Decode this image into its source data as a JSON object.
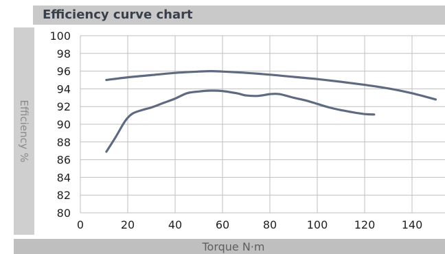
{
  "chart_data": {
    "type": "line",
    "title": "Efficiency curve chart",
    "xlabel": "Torque N·m",
    "ylabel": "Efficiency %",
    "xlim": [
      0,
      155
    ],
    "ylim": [
      80,
      100
    ],
    "xticks": [
      0,
      20,
      40,
      60,
      80,
      100,
      120,
      140
    ],
    "yticks": [
      80,
      82,
      84,
      86,
      88,
      90,
      92,
      94,
      96,
      98,
      100
    ],
    "grid": true,
    "series": [
      {
        "color": "#5d6a80",
        "x": [
          11,
          20,
          30,
          40,
          50,
          55,
          60,
          70,
          80,
          90,
          100,
          110,
          120,
          130,
          140,
          150
        ],
        "y": [
          95.0,
          95.3,
          95.55,
          95.8,
          95.95,
          96.0,
          95.95,
          95.8,
          95.6,
          95.35,
          95.1,
          94.8,
          94.45,
          94.05,
          93.5,
          92.8
        ]
      },
      {
        "color": "#5d6a80",
        "x": [
          11,
          15,
          19,
          22,
          26,
          30,
          35,
          40,
          45,
          50,
          55,
          60,
          66,
          70,
          75,
          80,
          84,
          90,
          95,
          100,
          105,
          110,
          115,
          120,
          124
        ],
        "y": [
          86.9,
          88.6,
          90.4,
          91.2,
          91.6,
          91.9,
          92.4,
          92.9,
          93.5,
          93.7,
          93.8,
          93.75,
          93.5,
          93.25,
          93.2,
          93.4,
          93.4,
          93.0,
          92.7,
          92.3,
          91.9,
          91.6,
          91.35,
          91.15,
          91.1
        ]
      }
    ]
  }
}
